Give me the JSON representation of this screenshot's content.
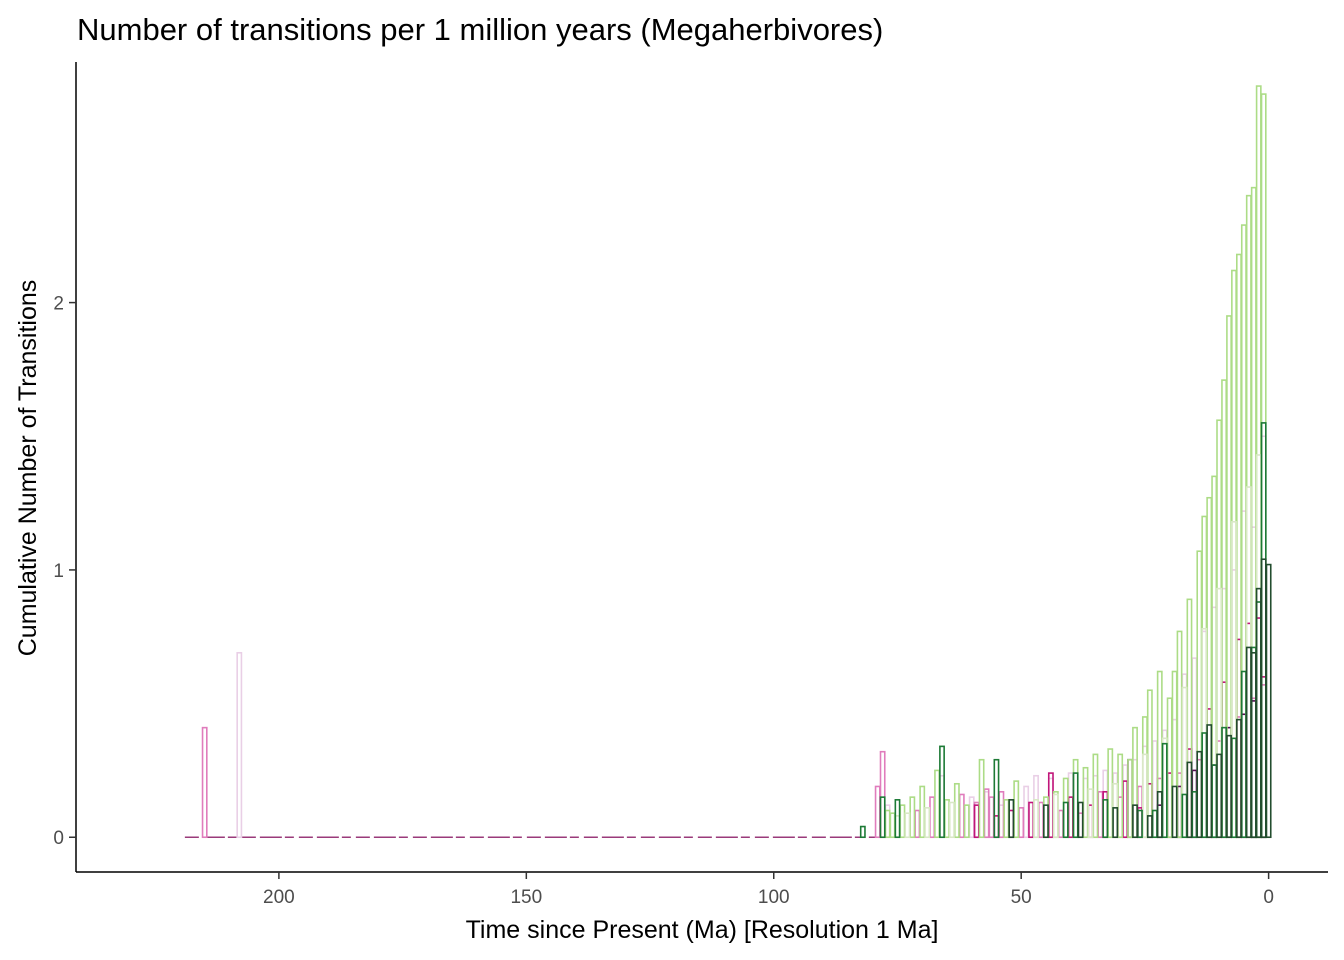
{
  "chart_data": {
    "type": "bar",
    "title": "Number of transitions per 1 million years (Megaherbivores)",
    "xlabel": "Time since Present (Ma) [Resolution 1 Ma]",
    "ylabel": "Cumulative Number of Transitions",
    "xlim": [
      241,
      -12
    ],
    "ylim": [
      -0.13,
      2.9
    ],
    "x_ticks": [
      {
        "value": 200,
        "label": "200"
      },
      {
        "value": 150,
        "label": "150"
      },
      {
        "value": 100,
        "label": "100"
      },
      {
        "value": 50,
        "label": "50"
      },
      {
        "value": 0,
        "label": "0"
      }
    ],
    "y_ticks": [
      {
        "value": 0,
        "label": "0"
      },
      {
        "value": 1,
        "label": "1"
      },
      {
        "value": 2,
        "label": "2"
      }
    ],
    "grid": false,
    "legend": "none",
    "series_colors": [
      "#e9cfe6",
      "#e07cbc",
      "#c1157a",
      "#540a52",
      "#acdc86",
      "#d9e8c6",
      "#1d7a36",
      "#234d2e"
    ],
    "series": [
      {
        "color": "#e9cfe6",
        "x": [
          208,
          77,
          66,
          60,
          57,
          54,
          49,
          47,
          44,
          40,
          37,
          35,
          33,
          31,
          29,
          27,
          25,
          23,
          21,
          19,
          17,
          15,
          13,
          11,
          9,
          7,
          5,
          3,
          1
        ],
        "values": [
          0.69,
          0.12,
          0.23,
          0.15,
          0.17,
          0.12,
          0.19,
          0.23,
          0.22,
          0.24,
          0.22,
          0.23,
          0.25,
          0.24,
          0.27,
          0.29,
          0.34,
          0.36,
          0.4,
          0.44,
          0.61,
          0.67,
          0.77,
          0.86,
          0.93,
          1.0,
          1.22,
          1.16,
          1.5
        ]
      },
      {
        "color": "#e07cbc",
        "x": [
          215,
          79,
          78,
          71,
          68,
          62,
          59,
          57,
          56,
          54,
          50,
          46,
          42,
          38,
          34,
          30,
          26,
          22,
          18,
          14,
          10,
          6,
          3,
          1
        ],
        "values": [
          0.41,
          0.19,
          0.32,
          0.1,
          0.15,
          0.16,
          0.13,
          0.18,
          0.15,
          0.17,
          0.11,
          0.13,
          0.1,
          0.09,
          0.17,
          0.15,
          0.19,
          0.22,
          0.24,
          0.29,
          0.36,
          0.45,
          0.52,
          0.57
        ]
      },
      {
        "color": "#c1157a",
        "x": [
          59,
          55,
          52,
          48,
          44,
          40,
          36,
          33,
          29,
          26,
          24,
          20,
          16,
          12,
          9,
          6,
          4,
          2,
          1
        ],
        "values": [
          0.12,
          0.08,
          0.1,
          0.13,
          0.24,
          0.15,
          0.12,
          0.17,
          0.21,
          0.11,
          0.2,
          0.24,
          0.33,
          0.48,
          0.58,
          0.74,
          0.8,
          0.82,
          0.6
        ]
      },
      {
        "color": "#540a52",
        "x": [
          28,
          22,
          18,
          15,
          11,
          8,
          5,
          3
        ],
        "values": [
          0.29,
          0.12,
          0.19,
          0.25,
          0.27,
          0.41,
          0.46,
          0.51
        ]
      },
      {
        "color": "#acdc86",
        "x": [
          77,
          76,
          74,
          72,
          70,
          67,
          65,
          63,
          61,
          58,
          53,
          51,
          45,
          43,
          41,
          39,
          37,
          35,
          32,
          30,
          28,
          27,
          25,
          24,
          22,
          20,
          19,
          18,
          16,
          14,
          13,
          12,
          11,
          10,
          9,
          8,
          7,
          6,
          5,
          4,
          3,
          2,
          1
        ],
        "values": [
          0.1,
          0.09,
          0.12,
          0.15,
          0.19,
          0.25,
          0.14,
          0.2,
          0.12,
          0.29,
          0.14,
          0.21,
          0.15,
          0.17,
          0.22,
          0.29,
          0.26,
          0.31,
          0.33,
          0.31,
          0.29,
          0.41,
          0.45,
          0.55,
          0.62,
          0.52,
          0.62,
          0.77,
          0.89,
          1.07,
          1.2,
          1.27,
          1.35,
          1.56,
          1.71,
          1.95,
          2.12,
          2.18,
          2.29,
          2.4,
          2.43,
          2.81,
          2.78
        ]
      },
      {
        "color": "#d9e8c6",
        "x": [
          75,
          73,
          69,
          64,
          47,
          43,
          36,
          31,
          25,
          21,
          17,
          13,
          10,
          7,
          4,
          2
        ],
        "values": [
          0.08,
          0.09,
          0.11,
          0.13,
          0.14,
          0.16,
          0.18,
          0.2,
          0.31,
          0.37,
          0.56,
          0.78,
          0.93,
          1.18,
          1.31,
          1.43
        ]
      },
      {
        "color": "#1d7a36",
        "x": [
          82,
          78,
          75,
          66,
          55,
          41,
          39,
          33,
          26,
          23,
          21,
          17,
          15,
          13,
          11,
          9,
          7,
          5,
          3,
          2,
          1
        ],
        "values": [
          0.04,
          0.15,
          0.14,
          0.34,
          0.29,
          0.13,
          0.24,
          0.14,
          0.1,
          0.1,
          0.35,
          0.16,
          0.17,
          0.39,
          0.27,
          0.41,
          0.37,
          0.62,
          0.71,
          0.88,
          1.55
        ]
      },
      {
        "color": "#234d2e",
        "x": [
          52,
          45,
          38,
          31,
          27,
          24,
          22,
          19,
          16,
          14,
          12,
          10,
          8,
          6,
          4,
          3,
          2,
          1,
          0
        ],
        "values": [
          0.14,
          0.12,
          0.13,
          0.11,
          0.12,
          0.08,
          0.17,
          0.19,
          0.28,
          0.32,
          0.42,
          0.31,
          0.38,
          0.44,
          0.71,
          0.69,
          0.93,
          1.04,
          1.02
        ]
      }
    ]
  }
}
